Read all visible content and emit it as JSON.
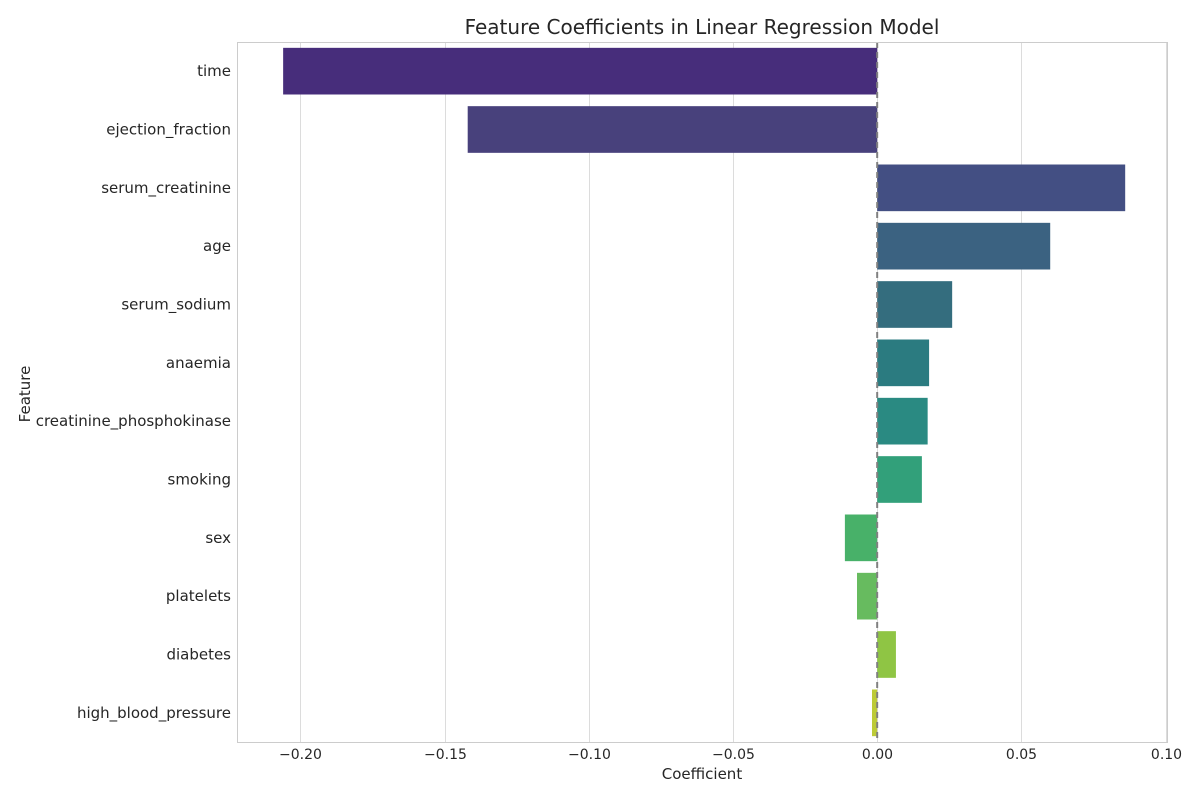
{
  "chart_data": {
    "type": "bar",
    "orientation": "horizontal",
    "title": "Feature Coefficients in Linear Regression Model",
    "xlabel": "Coefficient",
    "ylabel": "Feature",
    "xlim": [
      -0.222,
      0.1005
    ],
    "xticks": [
      -0.2,
      -0.15,
      -0.1,
      -0.05,
      0.0,
      0.05,
      0.1
    ],
    "xtick_labels": [
      "−0.20",
      "−0.15",
      "−0.10",
      "−0.05",
      "0.00",
      "0.05",
      "0.10"
    ],
    "grid": "vertical",
    "reference_line": {
      "x": 0.0,
      "style": "dashed",
      "color": "#808080"
    },
    "categories": [
      "time",
      "ejection_fraction",
      "serum_creatinine",
      "age",
      "serum_sodium",
      "anaemia",
      "creatinine_phosphokinase",
      "smoking",
      "sex",
      "platelets",
      "diabetes",
      "high_blood_pressure"
    ],
    "values": [
      -0.206,
      -0.142,
      0.086,
      0.06,
      0.026,
      0.018,
      0.0175,
      0.0155,
      -0.0112,
      -0.007,
      0.0065,
      -0.0018
    ],
    "colors": [
      "#472d7b",
      "#48417c",
      "#434f83",
      "#3b6281",
      "#346d7e",
      "#2b7b80",
      "#2a8a82",
      "#32a07a",
      "#48b169",
      "#67bb5f",
      "#8fc544",
      "#bdcb37"
    ]
  }
}
